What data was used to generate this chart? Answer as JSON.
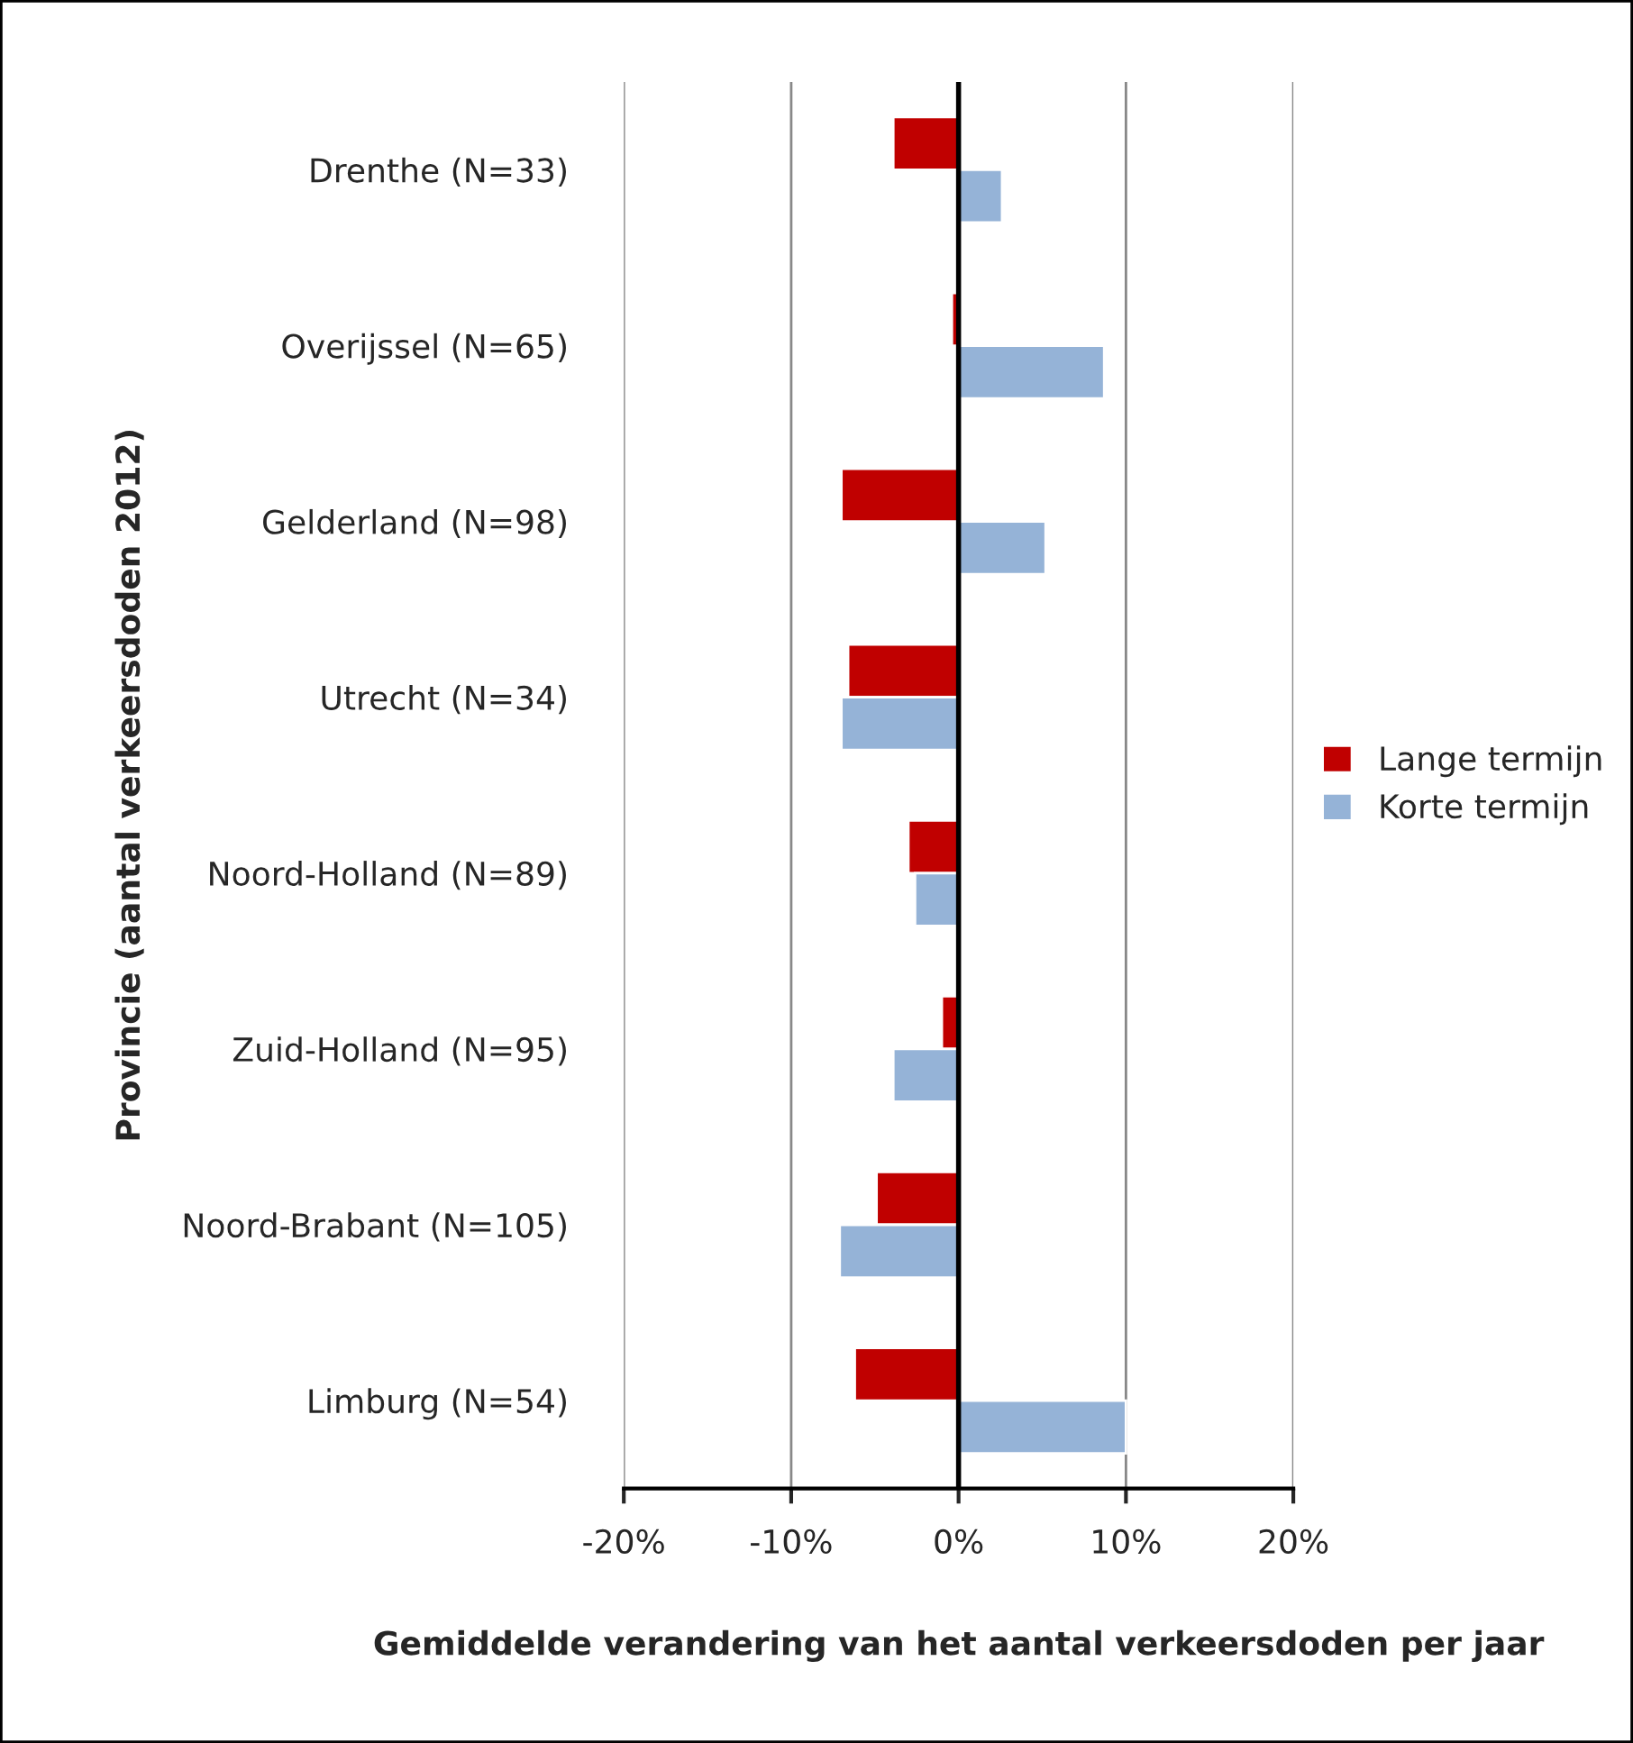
{
  "chart_data": {
    "type": "bar",
    "orientation": "horizontal",
    "xlabel": "Gemiddelde verandering van het aantal verkeersdoden per jaar",
    "ylabel": "Provincie (aantal verkeersdoden 2012)",
    "categories": [
      "Drenthe (N=33)",
      "Overijssel (N=65)",
      "Gelderland (N=98)",
      "Utrecht (N=34)",
      "Noord-Holland (N=89)",
      "Zuid-Holland (N=95)",
      "Noord-Brabant (N=105)",
      "Limburg (N=54)"
    ],
    "series": [
      {
        "name": "Lange termijn",
        "color": "#c00000",
        "values": [
          -3.9,
          -0.4,
          -7.0,
          -6.6,
          -3.0,
          -1.0,
          -4.9,
          -6.2
        ]
      },
      {
        "name": "Korte termijn",
        "color": "#95b3d7",
        "values": [
          2.6,
          8.7,
          5.2,
          -7.0,
          -2.6,
          -3.9,
          -7.1,
          10.0
        ]
      }
    ],
    "xlim": [
      -20,
      20
    ],
    "xticks": [
      {
        "value": -20,
        "label": "-20%"
      },
      {
        "value": -10,
        "label": "-10%"
      },
      {
        "value": 0,
        "label": "0%"
      },
      {
        "value": 10,
        "label": "10%"
      },
      {
        "value": 20,
        "label": "20%"
      }
    ],
    "grid": "x",
    "legend": "right"
  }
}
